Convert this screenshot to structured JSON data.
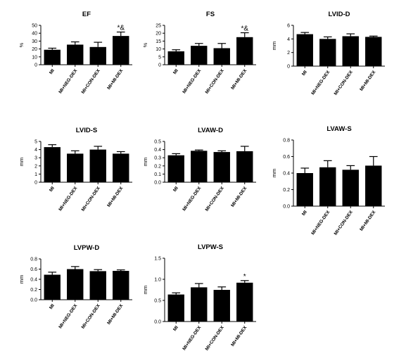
{
  "chart_data": [
    {
      "type": "bar",
      "title": "EF",
      "ylabel": "%",
      "ylim": [
        0,
        50
      ],
      "yticks": [
        "0",
        "10",
        "20",
        "30",
        "40",
        "50"
      ],
      "categories": [
        "MI",
        "MI+NEG-DEX",
        "MI+CON-DEX",
        "MI+MI-DEX"
      ],
      "values": [
        19,
        25.5,
        22.5,
        36.5
      ],
      "errors": [
        2,
        3.5,
        6,
        5
      ],
      "annotations": [
        "",
        "",
        "",
        "*&"
      ]
    },
    {
      "type": "bar",
      "title": "FS",
      "ylabel": "%",
      "ylim": [
        0,
        25
      ],
      "yticks": [
        "0",
        "5",
        "10",
        "15",
        "20",
        "25"
      ],
      "categories": [
        "MI",
        "MI+NEG-DEX",
        "MI+CON-DEX",
        "MI+MI-DEX"
      ],
      "values": [
        8.5,
        12,
        10.5,
        17.5
      ],
      "errors": [
        1,
        1.5,
        3,
        2.8
      ],
      "annotations": [
        "",
        "",
        "",
        "*&"
      ]
    },
    {
      "type": "bar",
      "title": "LVID-D",
      "ylabel": "mm",
      "ylim": [
        0,
        6
      ],
      "yticks": [
        "0",
        "2",
        "4",
        "6"
      ],
      "categories": [
        "MI",
        "MI+NEG-DEX",
        "MI+CON-DEX",
        "MI+MI-DEX"
      ],
      "values": [
        4.7,
        4,
        4.4,
        4.3
      ],
      "errors": [
        0.25,
        0.3,
        0.35,
        0.12
      ],
      "annotations": [
        "",
        "",
        "",
        ""
      ]
    },
    {
      "type": "bar",
      "title": "LVID-S",
      "ylabel": "mm",
      "ylim": [
        0,
        5
      ],
      "yticks": [
        "0",
        "1",
        "2",
        "3",
        "4",
        "5"
      ],
      "categories": [
        "MI",
        "MI+NEG-DEX",
        "MI+CON-DEX",
        "MI+MI-DEX"
      ],
      "values": [
        4.3,
        3.5,
        4,
        3.5
      ],
      "errors": [
        0.3,
        0.35,
        0.4,
        0.25
      ],
      "annotations": [
        "",
        "",
        "",
        ""
      ]
    },
    {
      "type": "bar",
      "title": "LVAW-D",
      "ylabel": "mm",
      "ylim": [
        0,
        0.5
      ],
      "yticks": [
        "0.0",
        "0.1",
        "0.2",
        "0.3",
        "0.4",
        "0.5"
      ],
      "categories": [
        "MI",
        "MI+NEG-DEX",
        "MI+CON-DEX",
        "MI+MI-DEX"
      ],
      "values": [
        0.33,
        0.385,
        0.37,
        0.38
      ],
      "errors": [
        0.02,
        0.01,
        0.015,
        0.06
      ],
      "annotations": [
        "",
        "",
        "",
        ""
      ]
    },
    {
      "type": "bar",
      "title": "LVAW-S",
      "ylabel": "mm",
      "ylim": [
        0,
        0.8
      ],
      "yticks": [
        "0.0",
        "0.2",
        "0.4",
        "0.6",
        "0.8"
      ],
      "categories": [
        "MI",
        "MI+NEG-DEX",
        "MI+CON-DEX",
        "MI+MI-DEX"
      ],
      "values": [
        0.4,
        0.47,
        0.44,
        0.49
      ],
      "errors": [
        0.06,
        0.08,
        0.05,
        0.11
      ],
      "annotations": [
        "",
        "",
        "",
        ""
      ]
    },
    {
      "type": "bar",
      "title": "LVPW-D",
      "ylabel": "mm",
      "ylim": [
        0,
        0.8
      ],
      "yticks": [
        "0.0",
        "0.2",
        "0.4",
        "0.6",
        "0.8"
      ],
      "categories": [
        "MI",
        "MI+NEG-DEX",
        "MI+CON-DEX",
        "MI+MI-DEX"
      ],
      "values": [
        0.49,
        0.6,
        0.56,
        0.565
      ],
      "errors": [
        0.05,
        0.05,
        0.03,
        0.02
      ],
      "annotations": [
        "",
        "",
        "",
        ""
      ]
    },
    {
      "type": "bar",
      "title": "LVPW-S",
      "ylabel": "mm",
      "ylim": [
        0,
        1.5
      ],
      "yticks": [
        "0.0",
        "0.5",
        "1.0",
        "1.5"
      ],
      "categories": [
        "MI",
        "MI+NEG-DEX",
        "MI+CON-DEX",
        "MI+MI-DEX"
      ],
      "values": [
        0.64,
        0.81,
        0.75,
        0.92
      ],
      "errors": [
        0.04,
        0.09,
        0.07,
        0.05
      ],
      "annotations": [
        "",
        "",
        "",
        "*"
      ]
    }
  ]
}
